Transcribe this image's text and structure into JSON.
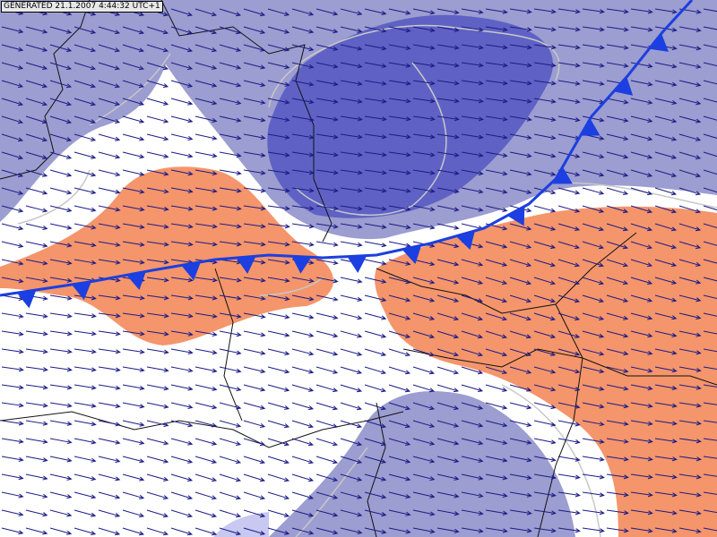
{
  "header": {
    "generated": "GENERATED 21.1.2007 4:44:32 UTC+1"
  }
}
